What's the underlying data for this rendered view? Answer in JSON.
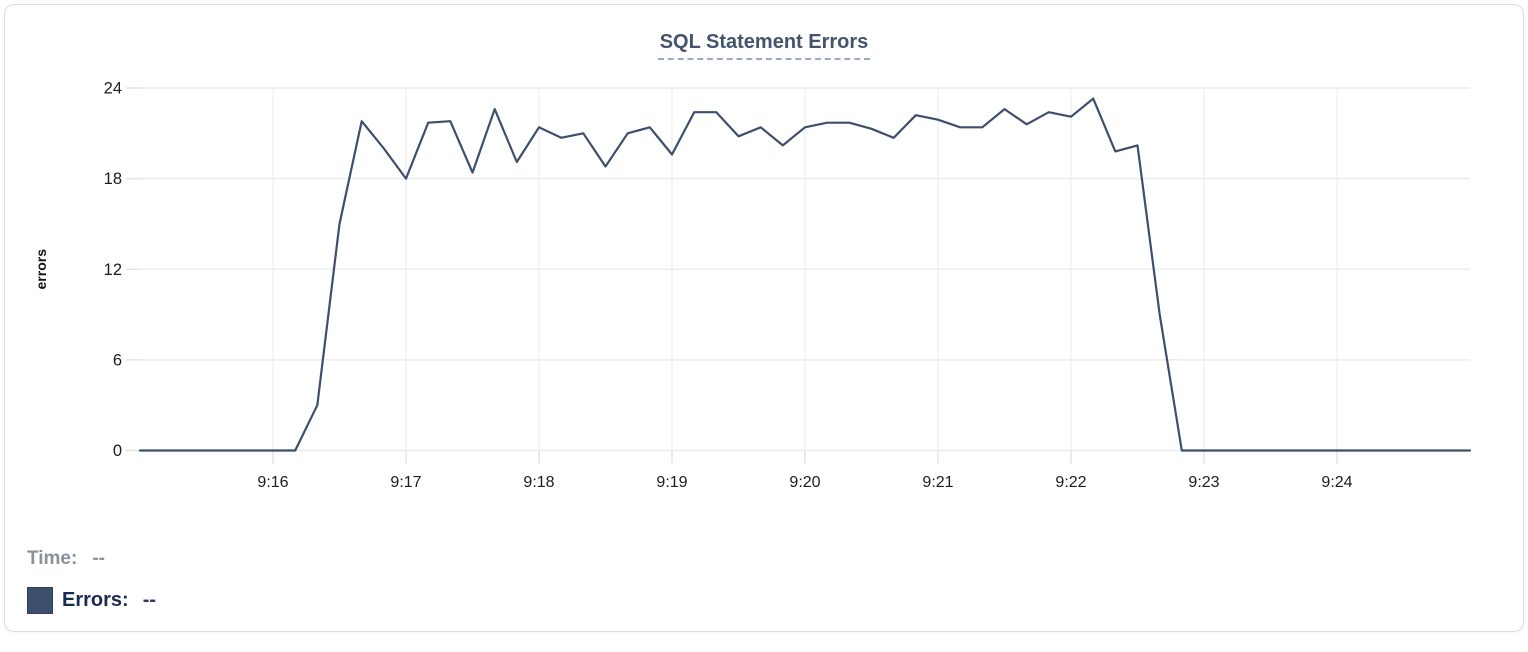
{
  "chart_data": {
    "type": "line",
    "title": "SQL Statement Errors",
    "ylabel": "errors",
    "x_interval_seconds": 10,
    "x": [
      "9:15:00",
      "9:15:10",
      "9:15:20",
      "9:15:30",
      "9:15:40",
      "9:15:50",
      "9:16:00",
      "9:16:10",
      "9:16:20",
      "9:16:30",
      "9:16:40",
      "9:16:50",
      "9:17:00",
      "9:17:10",
      "9:17:20",
      "9:17:30",
      "9:17:40",
      "9:17:50",
      "9:18:00",
      "9:18:10",
      "9:18:20",
      "9:18:30",
      "9:18:40",
      "9:18:50",
      "9:19:00",
      "9:19:10",
      "9:19:20",
      "9:19:30",
      "9:19:40",
      "9:19:50",
      "9:20:00",
      "9:20:10",
      "9:20:20",
      "9:20:30",
      "9:20:40",
      "9:20:50",
      "9:21:00",
      "9:21:10",
      "9:21:20",
      "9:21:30",
      "9:21:40",
      "9:21:50",
      "9:22:00",
      "9:22:10",
      "9:22:20",
      "9:22:30",
      "9:22:40",
      "9:22:50",
      "9:23:00",
      "9:23:10",
      "9:23:20",
      "9:23:30",
      "9:23:40",
      "9:23:50",
      "9:24:00",
      "9:24:10",
      "9:24:20",
      "9:24:30",
      "9:24:40",
      "9:24:50",
      "9:25:00"
    ],
    "values": [
      0,
      0,
      0,
      0,
      0,
      0,
      0,
      0,
      3,
      15,
      21.8,
      20,
      18,
      21.7,
      21.8,
      18.4,
      22.6,
      19.1,
      21.4,
      20.7,
      21,
      18.8,
      21,
      21.4,
      19.6,
      22.4,
      22.4,
      20.8,
      21.4,
      20.2,
      21.4,
      21.7,
      21.7,
      21.3,
      20.7,
      22.2,
      21.9,
      21.4,
      21.4,
      22.6,
      21.6,
      22.4,
      22.1,
      23.3,
      19.8,
      20.2,
      9,
      0,
      0,
      0,
      0,
      0,
      0,
      0,
      0,
      0,
      0,
      0,
      0,
      0,
      0
    ],
    "xticks": [
      "9:16",
      "9:17",
      "9:18",
      "9:19",
      "9:20",
      "9:21",
      "9:22",
      "9:23",
      "9:24"
    ],
    "yticks": [
      0,
      6,
      12,
      18,
      24
    ],
    "ylim": [
      0,
      24
    ],
    "grid": true,
    "legend_position": "bottom-left",
    "line_color": "#3e4e6c",
    "grid_color_h": "#ececec",
    "grid_color_v": "#f2f2f2",
    "tick_color": "#e3e3e3",
    "tick_label_color": "#1c1c1c",
    "axis_label_color": "#111111"
  },
  "readout": {
    "time_label": "Time:",
    "time_value": "--",
    "errors_label": "Errors:",
    "errors_value": "--",
    "swatch_color": "#3e4f6d"
  }
}
